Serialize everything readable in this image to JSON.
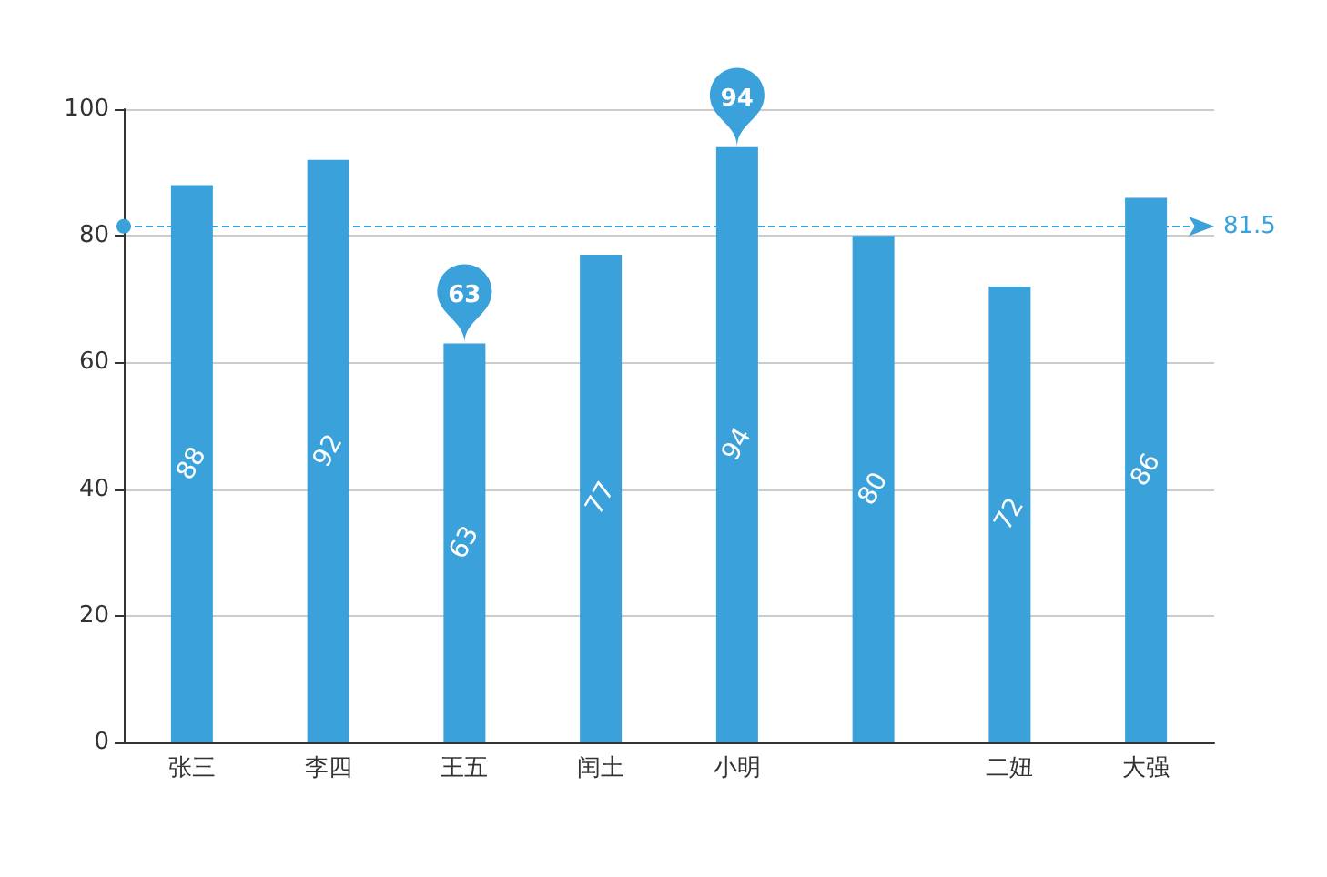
{
  "chart_data": {
    "type": "bar",
    "categories": [
      "张三",
      "李四",
      "王五",
      "闰土",
      "小明",
      null,
      "二妞",
      "大强"
    ],
    "values": [
      88,
      92,
      63,
      77,
      94,
      80,
      72,
      86
    ],
    "color": "#3aa1db",
    "ylim": [
      0,
      100
    ],
    "yticks": [
      0,
      20,
      40,
      60,
      80,
      100
    ],
    "grid": "y",
    "data_labels": true,
    "annotations": [
      "94",
      "63"
    ],
    "ref_lines": [
      {
        "axis": "y",
        "value": 81.5,
        "label": "81.5",
        "color": "#3aa1db",
        "line_style": "dashed"
      }
    ]
  }
}
